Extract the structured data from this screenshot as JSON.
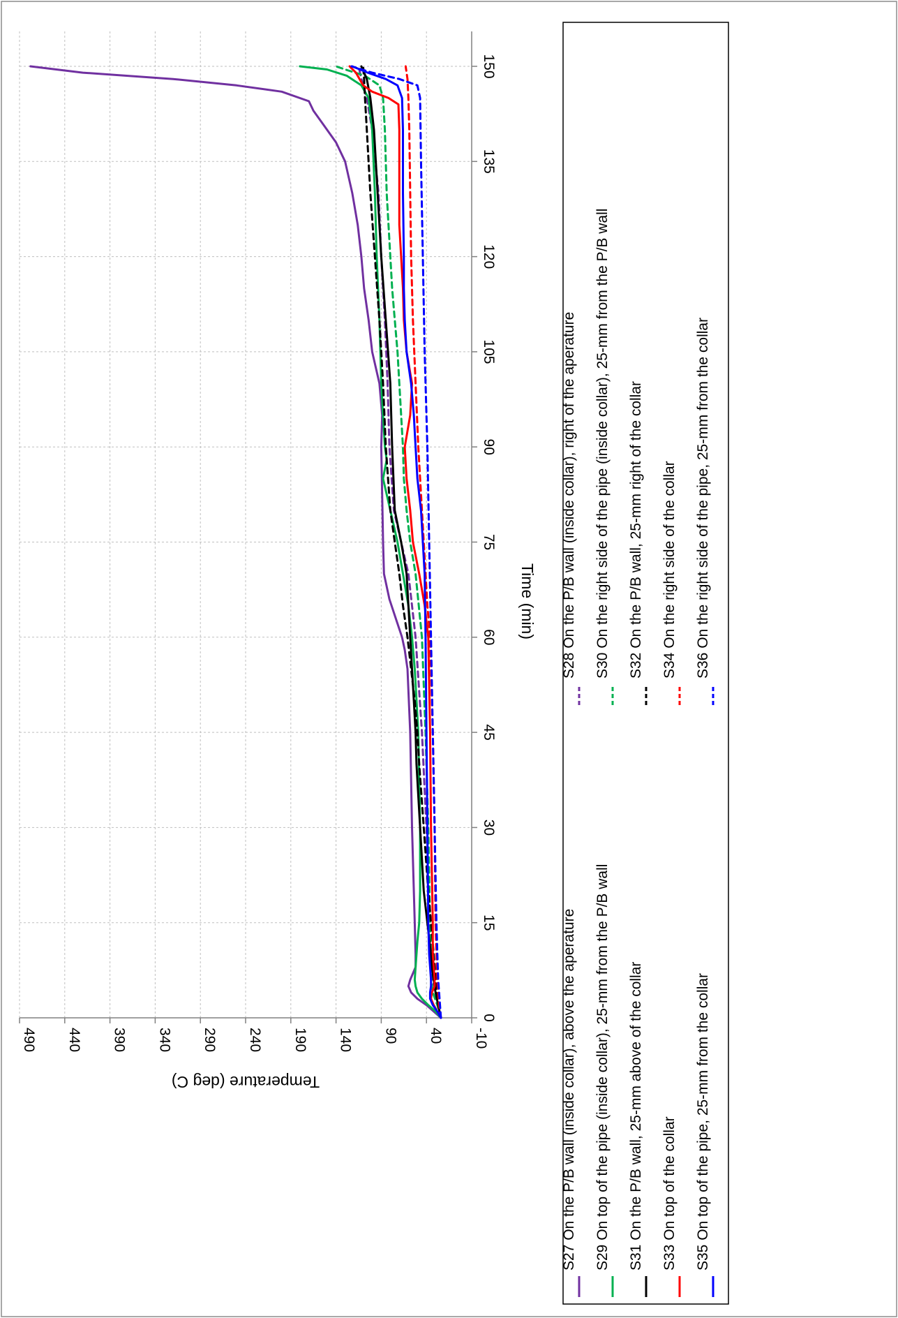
{
  "chart_data": {
    "type": "line",
    "xlabel": "Time (min)",
    "ylabel": "Temperature (deg C)",
    "xlim": [
      0,
      155
    ],
    "ylim": [
      -10,
      490
    ],
    "xticks": [
      0,
      15,
      30,
      45,
      60,
      75,
      90,
      105,
      120,
      135,
      150
    ],
    "yticks": [
      -10,
      40,
      90,
      140,
      190,
      240,
      290,
      340,
      390,
      440,
      490
    ],
    "grid": true,
    "legend_position": "bottom",
    "series": [
      {
        "name": "S27 On the P/B wall (inside collar),  above the aperature",
        "color": "#7030a0",
        "dash": "solid",
        "points": [
          [
            0,
            24
          ],
          [
            2,
            40
          ],
          [
            3,
            50
          ],
          [
            4,
            57
          ],
          [
            5,
            60
          ],
          [
            6,
            58
          ],
          [
            7,
            55
          ],
          [
            8,
            52
          ],
          [
            10,
            52
          ],
          [
            15,
            53
          ],
          [
            20,
            54
          ],
          [
            30,
            56
          ],
          [
            45,
            58
          ],
          [
            55,
            61
          ],
          [
            58,
            64
          ],
          [
            60,
            67
          ],
          [
            63,
            74
          ],
          [
            66,
            81
          ],
          [
            70,
            87
          ],
          [
            75,
            88
          ],
          [
            90,
            90
          ],
          [
            95,
            89
          ],
          [
            100,
            92
          ],
          [
            105,
            100
          ],
          [
            110,
            104
          ],
          [
            115,
            109
          ],
          [
            120,
            112
          ],
          [
            125,
            116
          ],
          [
            130,
            122
          ],
          [
            135,
            130
          ],
          [
            138,
            140
          ],
          [
            141,
            155
          ],
          [
            143,
            165
          ],
          [
            144.5,
            170
          ],
          [
            146,
            200
          ],
          [
            147,
            250
          ],
          [
            148,
            320
          ],
          [
            149,
            420
          ],
          [
            150,
            478
          ]
        ]
      },
      {
        "name": "S28 On the P/B wall (inside collar), right of the aperature",
        "color": "#7030a0",
        "dash": "dashed",
        "points": [
          [
            0,
            24
          ],
          [
            2,
            26
          ],
          [
            4,
            30
          ],
          [
            6,
            33
          ],
          [
            8,
            33
          ],
          [
            10,
            34
          ],
          [
            15,
            36
          ],
          [
            30,
            40
          ],
          [
            45,
            45
          ],
          [
            60,
            52
          ],
          [
            70,
            60
          ],
          [
            75,
            68
          ],
          [
            80,
            76
          ],
          [
            90,
            81
          ],
          [
            100,
            83
          ],
          [
            110,
            86
          ],
          [
            120,
            90
          ],
          [
            130,
            93
          ],
          [
            140,
            100
          ],
          [
            145,
            106
          ],
          [
            148,
            112
          ],
          [
            150,
            115
          ]
        ]
      },
      {
        "name": "S29 On top of the pipe (inside collar), 25-mm from the P/B wall",
        "color": "#00b050",
        "dash": "solid",
        "points": [
          [
            0,
            24
          ],
          [
            1,
            30
          ],
          [
            2,
            38
          ],
          [
            3,
            45
          ],
          [
            4,
            50
          ],
          [
            5,
            52
          ],
          [
            6,
            53
          ],
          [
            8,
            52
          ],
          [
            10,
            51
          ],
          [
            12,
            50
          ],
          [
            15,
            48
          ],
          [
            20,
            47
          ],
          [
            30,
            47
          ],
          [
            45,
            49
          ],
          [
            55,
            53
          ],
          [
            60,
            56
          ],
          [
            65,
            60
          ],
          [
            70,
            66
          ],
          [
            75,
            72
          ],
          [
            80,
            80
          ],
          [
            85,
            88
          ],
          [
            88,
            84
          ],
          [
            90,
            86
          ],
          [
            100,
            90
          ],
          [
            110,
            92
          ],
          [
            120,
            95
          ],
          [
            130,
            97
          ],
          [
            140,
            100
          ],
          [
            145,
            104
          ],
          [
            147,
            112
          ],
          [
            148.5,
            128
          ],
          [
            149.5,
            150
          ],
          [
            150,
            180
          ]
        ]
      },
      {
        "name": "S30 On the right side of the pipe (inside collar), 25-mm from the P/B wall",
        "color": "#00b050",
        "dash": "dashed",
        "points": [
          [
            0,
            24
          ],
          [
            2,
            28
          ],
          [
            4,
            33
          ],
          [
            6,
            35
          ],
          [
            10,
            35
          ],
          [
            15,
            36
          ],
          [
            30,
            38
          ],
          [
            45,
            41
          ],
          [
            60,
            45
          ],
          [
            70,
            52
          ],
          [
            75,
            58
          ],
          [
            80,
            62
          ],
          [
            85,
            65
          ],
          [
            90,
            66
          ],
          [
            100,
            70
          ],
          [
            105,
            72
          ],
          [
            110,
            75
          ],
          [
            115,
            78
          ],
          [
            120,
            80
          ],
          [
            125,
            82
          ],
          [
            130,
            84
          ],
          [
            135,
            85
          ],
          [
            140,
            86
          ],
          [
            145,
            88
          ],
          [
            147,
            92
          ],
          [
            148.5,
            108
          ],
          [
            149.5,
            130
          ],
          [
            150,
            140
          ]
        ]
      },
      {
        "name": "S31 On the P/B wall, 25-mm above of the collar",
        "color": "#000000",
        "dash": "solid",
        "points": [
          [
            0,
            24
          ],
          [
            2,
            27
          ],
          [
            4,
            30
          ],
          [
            6,
            32
          ],
          [
            8,
            34
          ],
          [
            10,
            35
          ],
          [
            15,
            39
          ],
          [
            20,
            43
          ],
          [
            30,
            47
          ],
          [
            40,
            51
          ],
          [
            45,
            52
          ],
          [
            50,
            54
          ],
          [
            55,
            56
          ],
          [
            60,
            58
          ],
          [
            70,
            62
          ],
          [
            75,
            68
          ],
          [
            80,
            75
          ],
          [
            90,
            78
          ],
          [
            100,
            80
          ],
          [
            110,
            85
          ],
          [
            120,
            90
          ],
          [
            130,
            94
          ],
          [
            140,
            98
          ],
          [
            145,
            102
          ],
          [
            148,
            106
          ],
          [
            150,
            112
          ]
        ]
      },
      {
        "name": "S32 On the P/B wall, 25-mm right of the collar",
        "color": "#000000",
        "dash": "dashed",
        "points": [
          [
            0,
            24
          ],
          [
            2,
            26
          ],
          [
            4,
            29
          ],
          [
            6,
            30
          ],
          [
            8,
            31
          ],
          [
            10,
            32
          ],
          [
            15,
            35
          ],
          [
            20,
            38
          ],
          [
            30,
            43
          ],
          [
            40,
            48
          ],
          [
            45,
            50
          ],
          [
            50,
            53
          ],
          [
            55,
            57
          ],
          [
            60,
            61
          ],
          [
            65,
            66
          ],
          [
            70,
            70
          ],
          [
            75,
            75
          ],
          [
            80,
            80
          ],
          [
            90,
            85
          ],
          [
            100,
            88
          ],
          [
            110,
            92
          ],
          [
            120,
            97
          ],
          [
            130,
            102
          ],
          [
            140,
            106
          ],
          [
            145,
            108
          ],
          [
            148,
            109
          ],
          [
            150,
            110
          ]
        ]
      },
      {
        "name": "S33 On top of  the collar",
        "color": "#ff0000",
        "dash": "solid",
        "points": [
          [
            0,
            24
          ],
          [
            2,
            32
          ],
          [
            3,
            35
          ],
          [
            4,
            34
          ],
          [
            5,
            31
          ],
          [
            6,
            31
          ],
          [
            8,
            32
          ],
          [
            10,
            33
          ],
          [
            15,
            33
          ],
          [
            30,
            35
          ],
          [
            45,
            36
          ],
          [
            60,
            38
          ],
          [
            65,
            42
          ],
          [
            70,
            48
          ],
          [
            75,
            55
          ],
          [
            80,
            58
          ],
          [
            85,
            62
          ],
          [
            90,
            64
          ],
          [
            95,
            58
          ],
          [
            100,
            56
          ],
          [
            105,
            62
          ],
          [
            110,
            65
          ],
          [
            115,
            66
          ],
          [
            120,
            68
          ],
          [
            125,
            70
          ],
          [
            130,
            70
          ],
          [
            135,
            70
          ],
          [
            140,
            70
          ],
          [
            144,
            71
          ],
          [
            145,
            82
          ],
          [
            146,
            100
          ],
          [
            147,
            110
          ],
          [
            148,
            114
          ],
          [
            149,
            118
          ],
          [
            150,
            125
          ]
        ]
      },
      {
        "name": "S34 On the right side of the collar",
        "color": "#ff0000",
        "dash": "dashed",
        "points": [
          [
            0,
            24
          ],
          [
            2,
            26
          ],
          [
            4,
            27
          ],
          [
            6,
            28
          ],
          [
            10,
            29
          ],
          [
            15,
            30
          ],
          [
            30,
            31
          ],
          [
            45,
            33
          ],
          [
            60,
            36
          ],
          [
            65,
            39
          ],
          [
            70,
            41
          ],
          [
            75,
            43
          ],
          [
            80,
            45
          ],
          [
            90,
            49
          ],
          [
            100,
            52
          ],
          [
            110,
            55
          ],
          [
            120,
            57
          ],
          [
            130,
            58
          ],
          [
            140,
            59
          ],
          [
            145,
            60
          ],
          [
            148,
            61
          ],
          [
            150,
            63
          ]
        ]
      },
      {
        "name": "S35 On top of the pipe,  25-mm from the collar",
        "color": "#0000ff",
        "dash": "solid",
        "points": [
          [
            0,
            24
          ],
          [
            1,
            28
          ],
          [
            2,
            33
          ],
          [
            3,
            36
          ],
          [
            4,
            36
          ],
          [
            5,
            35
          ],
          [
            6,
            35
          ],
          [
            8,
            36
          ],
          [
            10,
            37
          ],
          [
            15,
            38
          ],
          [
            30,
            39
          ],
          [
            45,
            40
          ],
          [
            60,
            41
          ],
          [
            70,
            42
          ],
          [
            80,
            46
          ],
          [
            85,
            50
          ],
          [
            90,
            52
          ],
          [
            95,
            54
          ],
          [
            100,
            57
          ],
          [
            105,
            62
          ],
          [
            110,
            64
          ],
          [
            115,
            65
          ],
          [
            120,
            65
          ],
          [
            130,
            66
          ],
          [
            140,
            66
          ],
          [
            145,
            67
          ],
          [
            147,
            72
          ],
          [
            148,
            85
          ],
          [
            149,
            105
          ],
          [
            150,
            122
          ]
        ]
      },
      {
        "name": "S36 On the right side of the pipe, 25-mm from the collar",
        "color": "#0000ff",
        "dash": "dashed",
        "points": [
          [
            0,
            24
          ],
          [
            2,
            25
          ],
          [
            4,
            26
          ],
          [
            6,
            27
          ],
          [
            10,
            28
          ],
          [
            15,
            29
          ],
          [
            30,
            31
          ],
          [
            45,
            33
          ],
          [
            60,
            35
          ],
          [
            75,
            37
          ],
          [
            90,
            39
          ],
          [
            105,
            42
          ],
          [
            120,
            44
          ],
          [
            135,
            46
          ],
          [
            145,
            47
          ],
          [
            147,
            50
          ],
          [
            148,
            70
          ],
          [
            149,
            100
          ],
          [
            150,
            123
          ]
        ]
      }
    ]
  }
}
